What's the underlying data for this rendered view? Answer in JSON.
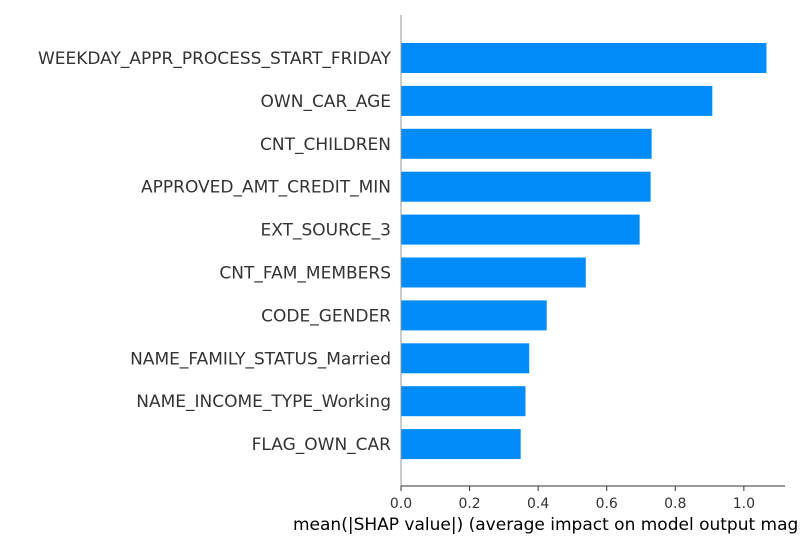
{
  "chart_data": {
    "type": "bar",
    "orientation": "horizontal",
    "categories": [
      "WEEKDAY_APPR_PROCESS_START_FRIDAY",
      "OWN_CAR_AGE",
      "CNT_CHILDREN",
      "APPROVED_AMT_CREDIT_MIN",
      "EXT_SOURCE_3",
      "CNT_FAM_MEMBERS",
      "CODE_GENDER",
      "NAME_FAMILY_STATUS_Married",
      "NAME_INCOME_TYPE_Working",
      "FLAG_OWN_CAR"
    ],
    "values": [
      1.066,
      0.908,
      0.731,
      0.728,
      0.696,
      0.539,
      0.425,
      0.374,
      0.363,
      0.349
    ],
    "xlabel": "mean(|SHAP value|) (average impact on model output magnitude)",
    "xticks": [
      "0.0",
      "0.2",
      "0.4",
      "0.6",
      "0.8",
      "1.0"
    ],
    "xtick_values": [
      0.0,
      0.2,
      0.4,
      0.6,
      0.8,
      1.0
    ],
    "xlim": [
      0,
      1.12
    ],
    "grid": false,
    "bar_color": "#008bfb"
  }
}
